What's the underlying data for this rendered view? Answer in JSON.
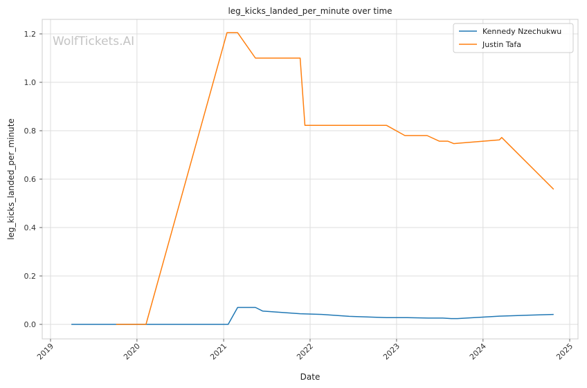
{
  "chart_data": {
    "type": "line",
    "title": "leg_kicks_landed_per_minute over time",
    "xlabel": "Date",
    "ylabel": "leg_kicks_landed_per_minute",
    "watermark": "WolfTickets.AI",
    "xlim": [
      "2018-11-27",
      "2025-02-05"
    ],
    "ylim": [
      -0.06,
      1.26
    ],
    "x_ticks": [
      "2019",
      "2020",
      "2021",
      "2022",
      "2023",
      "2024",
      "2025"
    ],
    "y_ticks": [
      0.0,
      0.2,
      0.4,
      0.6,
      0.8,
      1.0,
      1.2
    ],
    "y_tick_labels": [
      "0.0",
      "0.2",
      "0.4",
      "0.6",
      "0.8",
      "1.0",
      "1.2"
    ],
    "grid": true,
    "legend_position": "top-right",
    "series": [
      {
        "name": "Kennedy Nzechukwu",
        "color": "#1f77b4",
        "points": [
          {
            "x": "2019-03-30",
            "y": 0.0
          },
          {
            "x": "2021-01-20",
            "y": 0.0
          },
          {
            "x": "2021-03-01",
            "y": 0.07
          },
          {
            "x": "2021-05-15",
            "y": 0.07
          },
          {
            "x": "2021-06-15",
            "y": 0.055
          },
          {
            "x": "2021-11-20",
            "y": 0.044
          },
          {
            "x": "2022-02-20",
            "y": 0.041
          },
          {
            "x": "2022-06-15",
            "y": 0.033
          },
          {
            "x": "2022-11-20",
            "y": 0.028
          },
          {
            "x": "2023-02-15",
            "y": 0.028
          },
          {
            "x": "2023-05-15",
            "y": 0.026
          },
          {
            "x": "2023-07-15",
            "y": 0.026
          },
          {
            "x": "2023-08-20",
            "y": 0.024
          },
          {
            "x": "2023-09-15",
            "y": 0.024
          },
          {
            "x": "2024-03-10",
            "y": 0.034
          },
          {
            "x": "2024-10-25",
            "y": 0.041
          }
        ]
      },
      {
        "name": "Justin Tafa",
        "color": "#ff7f0e",
        "points": [
          {
            "x": "2019-10-05",
            "y": 0.0
          },
          {
            "x": "2020-02-08",
            "y": 0.0
          },
          {
            "x": "2021-01-15",
            "y": 1.205
          },
          {
            "x": "2021-03-01",
            "y": 1.205
          },
          {
            "x": "2021-05-15",
            "y": 1.1
          },
          {
            "x": "2021-11-20",
            "y": 1.1
          },
          {
            "x": "2021-12-10",
            "y": 0.822
          },
          {
            "x": "2022-11-20",
            "y": 0.822
          },
          {
            "x": "2023-02-05",
            "y": 0.78
          },
          {
            "x": "2023-05-10",
            "y": 0.78
          },
          {
            "x": "2023-06-30",
            "y": 0.757
          },
          {
            "x": "2023-08-05",
            "y": 0.757
          },
          {
            "x": "2023-08-30",
            "y": 0.747
          },
          {
            "x": "2024-03-10",
            "y": 0.762
          },
          {
            "x": "2024-03-20",
            "y": 0.772
          },
          {
            "x": "2024-10-25",
            "y": 0.558
          }
        ]
      }
    ]
  }
}
